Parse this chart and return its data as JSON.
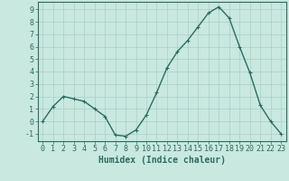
{
  "x": [
    0,
    1,
    2,
    3,
    4,
    5,
    6,
    7,
    8,
    9,
    10,
    11,
    12,
    13,
    14,
    15,
    16,
    17,
    18,
    19,
    20,
    21,
    22,
    23
  ],
  "y": [
    0,
    1.2,
    2.0,
    1.8,
    1.6,
    1.0,
    0.4,
    -1.1,
    -1.2,
    -0.7,
    0.5,
    2.3,
    4.3,
    5.6,
    6.5,
    7.6,
    8.7,
    9.2,
    8.3,
    6.0,
    3.9,
    1.3,
    0.0,
    -1.0
  ],
  "line_color": "#2e6b5e",
  "marker": "+",
  "marker_size": 3.5,
  "bg_color": "#c8e8e0",
  "grid_color": "#aacfc8",
  "xlabel": "Humidex (Indice chaleur)",
  "xlim": [
    -0.5,
    23.5
  ],
  "ylim": [
    -1.6,
    9.6
  ],
  "yticks": [
    -1,
    0,
    1,
    2,
    3,
    4,
    5,
    6,
    7,
    8,
    9
  ],
  "xticks": [
    0,
    1,
    2,
    3,
    4,
    5,
    6,
    7,
    8,
    9,
    10,
    11,
    12,
    13,
    14,
    15,
    16,
    17,
    18,
    19,
    20,
    21,
    22,
    23
  ],
  "tick_color": "#2e6b5e",
  "label_color": "#2e6b5e",
  "font_size": 6,
  "xlabel_fontsize": 7,
  "linewidth": 1.0
}
